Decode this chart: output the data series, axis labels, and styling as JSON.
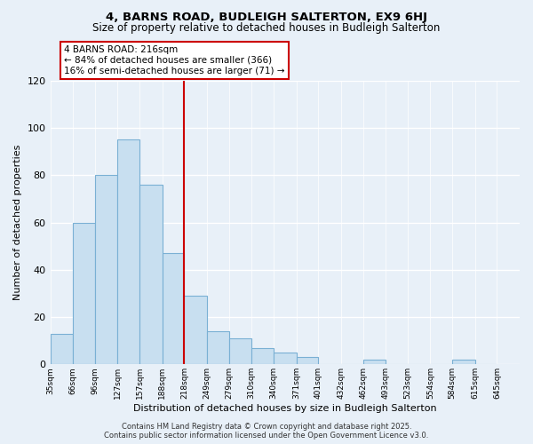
{
  "title": "4, BARNS ROAD, BUDLEIGH SALTERTON, EX9 6HJ",
  "subtitle": "Size of property relative to detached houses in Budleigh Salterton",
  "xlabel": "Distribution of detached houses by size in Budleigh Salterton",
  "ylabel": "Number of detached properties",
  "bar_color": "#c8dff0",
  "bar_edge_color": "#7ab0d4",
  "background_color": "#e8f0f8",
  "grid_color": "white",
  "bins": [
    35,
    66,
    96,
    127,
    157,
    188,
    218,
    249,
    279,
    310,
    340,
    371,
    401,
    432,
    462,
    493,
    523,
    554,
    584,
    615,
    645
  ],
  "counts": [
    13,
    60,
    80,
    95,
    76,
    47,
    29,
    14,
    11,
    7,
    5,
    3,
    0,
    0,
    2,
    0,
    0,
    0,
    2,
    0
  ],
  "tick_labels": [
    "35sqm",
    "66sqm",
    "96sqm",
    "127sqm",
    "157sqm",
    "188sqm",
    "218sqm",
    "249sqm",
    "279sqm",
    "310sqm",
    "340sqm",
    "371sqm",
    "401sqm",
    "432sqm",
    "462sqm",
    "493sqm",
    "523sqm",
    "554sqm",
    "584sqm",
    "615sqm",
    "645sqm"
  ],
  "vline_x": 218,
  "vline_color": "#cc0000",
  "ylim": [
    0,
    120
  ],
  "yticks": [
    0,
    20,
    40,
    60,
    80,
    100,
    120
  ],
  "annotation_title": "4 BARNS ROAD: 216sqm",
  "annotation_line1": "← 84% of detached houses are smaller (366)",
  "annotation_line2": "16% of semi-detached houses are larger (71) →",
  "annotation_box_color": "white",
  "annotation_box_edge": "#cc0000",
  "footer1": "Contains HM Land Registry data © Crown copyright and database right 2025.",
  "footer2": "Contains public sector information licensed under the Open Government Licence v3.0."
}
